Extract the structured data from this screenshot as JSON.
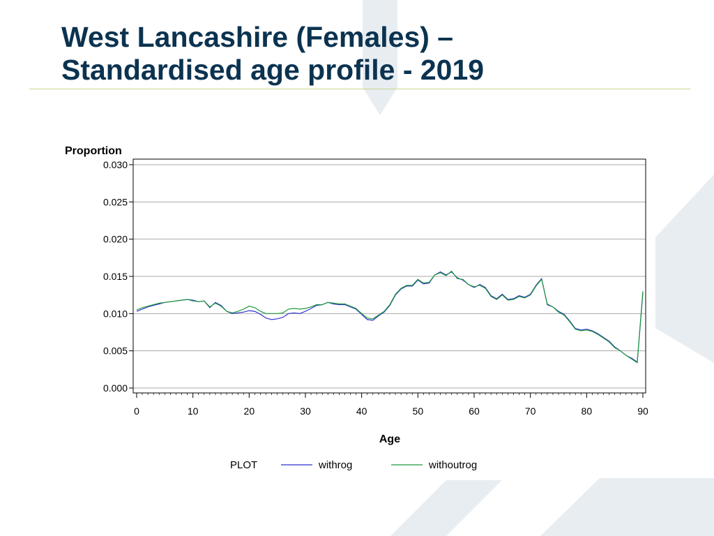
{
  "slide": {
    "title_line1": "West Lancashire (Females) –",
    "title_line2": "Standardised age profile - 2019"
  },
  "colors": {
    "title": "#0b3350",
    "rule": "#c9d48a",
    "background_shape": "#e8edf2",
    "withrog": "#2f2fd0",
    "withoutrog": "#1f9a3a",
    "gridline": "#a8a8a8"
  },
  "chart_data": {
    "type": "line",
    "title": "",
    "ylabel": "Proportion",
    "xlabel": "Age",
    "xlim": [
      0,
      90
    ],
    "ylim": [
      0.0,
      0.03
    ],
    "xticks": [
      0,
      10,
      20,
      30,
      40,
      50,
      60,
      70,
      80,
      90
    ],
    "yticks": [
      0.0,
      0.005,
      0.01,
      0.015,
      0.02,
      0.025,
      0.03
    ],
    "ytick_labels": [
      "0.000",
      "0.005",
      "0.010",
      "0.015",
      "0.020",
      "0.025",
      "0.030"
    ],
    "grid": "horizontal",
    "legend": {
      "title": "PLOT",
      "position": "bottom"
    },
    "x": [
      0,
      1,
      2,
      3,
      4,
      5,
      6,
      7,
      8,
      9,
      10,
      11,
      12,
      13,
      14,
      15,
      16,
      17,
      18,
      19,
      20,
      21,
      22,
      23,
      24,
      25,
      26,
      27,
      28,
      29,
      30,
      31,
      32,
      33,
      34,
      35,
      36,
      37,
      38,
      39,
      40,
      41,
      42,
      43,
      44,
      45,
      46,
      47,
      48,
      49,
      50,
      51,
      52,
      53,
      54,
      55,
      56,
      57,
      58,
      59,
      60,
      61,
      62,
      63,
      64,
      65,
      66,
      67,
      68,
      69,
      70,
      71,
      72,
      73,
      74,
      75,
      76,
      77,
      78,
      79,
      80,
      81,
      82,
      83,
      84,
      85,
      86,
      87,
      88,
      89,
      90
    ],
    "series": [
      {
        "name": "withrog",
        "values": [
          0.0103,
          0.0106,
          0.0109,
          0.0111,
          0.0113,
          0.0115,
          0.0116,
          0.0117,
          0.0118,
          0.0119,
          0.0118,
          0.0116,
          0.0117,
          0.0108,
          0.0115,
          0.0111,
          0.0103,
          0.01,
          0.0101,
          0.0102,
          0.0104,
          0.0103,
          0.0099,
          0.0094,
          0.0092,
          0.0093,
          0.0095,
          0.01,
          0.0101,
          0.01,
          0.0103,
          0.0107,
          0.0111,
          0.0112,
          0.0115,
          0.0113,
          0.0112,
          0.0112,
          0.0109,
          0.0106,
          0.0099,
          0.0092,
          0.0091,
          0.0097,
          0.0102,
          0.0111,
          0.0125,
          0.0133,
          0.0137,
          0.0137,
          0.0145,
          0.014,
          0.0141,
          0.0152,
          0.0156,
          0.0152,
          0.0156,
          0.0148,
          0.0145,
          0.0139,
          0.0135,
          0.0139,
          0.0135,
          0.0124,
          0.012,
          0.0126,
          0.0119,
          0.012,
          0.0124,
          0.0122,
          0.0126,
          0.0138,
          0.0147,
          0.0112,
          0.0109,
          0.0103,
          0.0099,
          0.009,
          0.008,
          0.0078,
          0.0079,
          0.0077,
          0.0073,
          0.0068,
          0.0063,
          0.0055,
          0.005,
          0.0044,
          0.004,
          0.0035,
          0.0128
        ]
      },
      {
        "name": "withoutrog",
        "values": [
          0.0105,
          0.0108,
          0.011,
          0.0112,
          0.0114,
          0.0115,
          0.0116,
          0.0117,
          0.0118,
          0.0119,
          0.0117,
          0.0116,
          0.0117,
          0.0109,
          0.0114,
          0.011,
          0.0103,
          0.0101,
          0.0103,
          0.0106,
          0.011,
          0.0108,
          0.0103,
          0.01,
          0.01,
          0.01,
          0.0101,
          0.0106,
          0.0107,
          0.0106,
          0.0107,
          0.0109,
          0.0112,
          0.0112,
          0.0115,
          0.0114,
          0.0113,
          0.0113,
          0.011,
          0.0107,
          0.01,
          0.0094,
          0.0093,
          0.0098,
          0.0103,
          0.0112,
          0.0126,
          0.0134,
          0.0138,
          0.0138,
          0.0146,
          0.0141,
          0.0142,
          0.0152,
          0.0155,
          0.0151,
          0.0157,
          0.0147,
          0.0146,
          0.0139,
          0.0136,
          0.0138,
          0.0134,
          0.0123,
          0.0119,
          0.0125,
          0.0118,
          0.0119,
          0.0123,
          0.0121,
          0.0125,
          0.0137,
          0.0146,
          0.0113,
          0.0109,
          0.0102,
          0.0098,
          0.0089,
          0.0079,
          0.0077,
          0.0078,
          0.0076,
          0.0072,
          0.0067,
          0.0062,
          0.0054,
          0.005,
          0.0044,
          0.0039,
          0.0034,
          0.013
        ]
      }
    ]
  }
}
